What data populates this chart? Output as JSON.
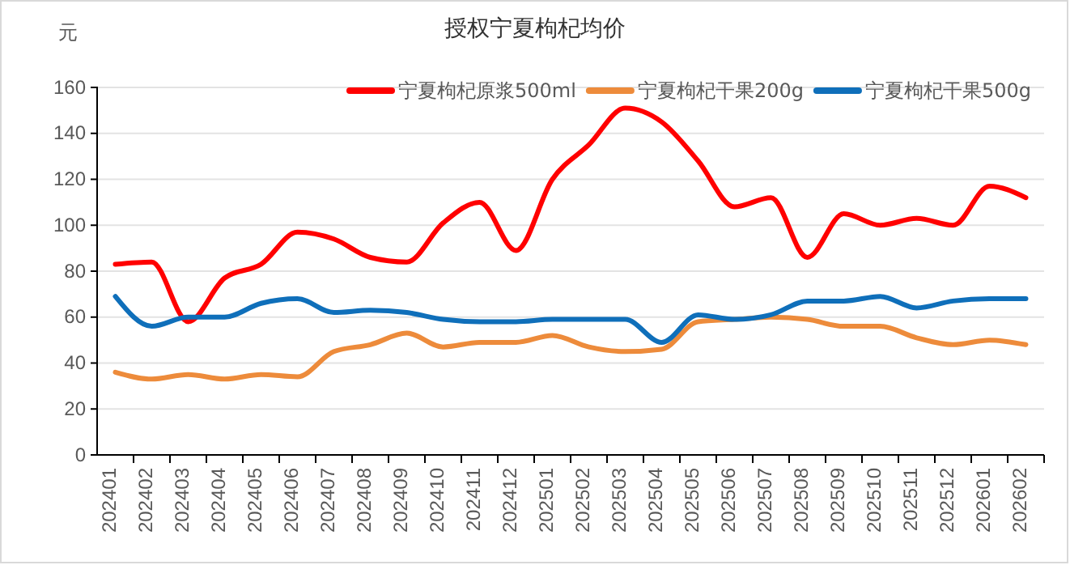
{
  "chart_data": {
    "type": "line",
    "title": "授权宁夏枸杞均价",
    "ylabel": "元",
    "categories": [
      "202401",
      "202402",
      "202403",
      "202404",
      "202405",
      "202406",
      "202407",
      "202408",
      "202409",
      "202410",
      "202411",
      "202412",
      "202501",
      "202502",
      "202503",
      "202504",
      "202505",
      "202506",
      "202507",
      "202508",
      "202509",
      "202510",
      "202511",
      "202512",
      "202601",
      "202602"
    ],
    "series": [
      {
        "name": "宁夏枸杞原浆500ml",
        "color": "#ff0000",
        "values": [
          83,
          84,
          58,
          77,
          83,
          97,
          94,
          86,
          84,
          101,
          110,
          89,
          120,
          135,
          151,
          145,
          128,
          108,
          112,
          86,
          105,
          100,
          103,
          100,
          117,
          112
        ]
      },
      {
        "name": "宁夏枸杞干果200g",
        "color": "#ed8b3b",
        "values": [
          36,
          33,
          35,
          33,
          35,
          34,
          45,
          48,
          53,
          47,
          49,
          49,
          52,
          47,
          45,
          46,
          58,
          59,
          60,
          59,
          56,
          56,
          51,
          48,
          50,
          48
        ]
      },
      {
        "name": "宁夏枸杞干果500g",
        "color": "#0f6fba",
        "values": [
          69,
          56,
          60,
          60,
          66,
          68,
          62,
          63,
          62,
          59,
          58,
          58,
          59,
          59,
          59,
          49,
          61,
          59,
          61,
          67,
          67,
          69,
          64,
          67,
          68,
          68
        ]
      }
    ],
    "ylim": [
      0,
      160
    ],
    "yticks": [
      0,
      20,
      40,
      60,
      80,
      100,
      120,
      140,
      160
    ],
    "grid": "y",
    "legend": "top right",
    "marker": "none",
    "line_style": "solid"
  }
}
